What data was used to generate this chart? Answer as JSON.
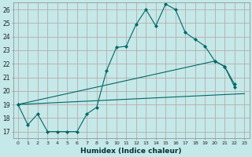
{
  "xlabel": "Humidex (Indice chaleur)",
  "bg_color": "#c5e8e8",
  "grid_color": "#b8a0a0",
  "line_color": "#006868",
  "xlim": [
    -0.5,
    23.5
  ],
  "ylim": [
    16.5,
    26.5
  ],
  "yticks": [
    17,
    18,
    19,
    20,
    21,
    22,
    23,
    24,
    25,
    26
  ],
  "xticks": [
    0,
    1,
    2,
    3,
    4,
    5,
    6,
    7,
    8,
    9,
    10,
    11,
    12,
    13,
    14,
    15,
    16,
    17,
    18,
    19,
    20,
    21,
    22,
    23
  ],
  "line1_x": [
    0,
    1,
    2,
    3,
    4,
    5,
    6,
    7,
    8,
    9,
    10,
    11,
    12,
    13,
    14,
    15,
    16,
    17,
    18,
    19,
    20,
    21,
    22
  ],
  "line1_y": [
    19,
    17.5,
    18.3,
    17.0,
    17.0,
    17.0,
    17.0,
    18.3,
    18.8,
    21.5,
    23.2,
    23.3,
    24.9,
    26.0,
    24.8,
    26.4,
    26.0,
    24.3,
    23.8,
    23.3,
    22.2,
    21.8,
    20.5
  ],
  "line2_x": [
    0,
    20,
    21,
    22
  ],
  "line2_y": [
    19,
    22.2,
    21.8,
    20.3
  ],
  "line3_x": [
    0,
    23
  ],
  "line3_y": [
    19,
    19.8
  ]
}
